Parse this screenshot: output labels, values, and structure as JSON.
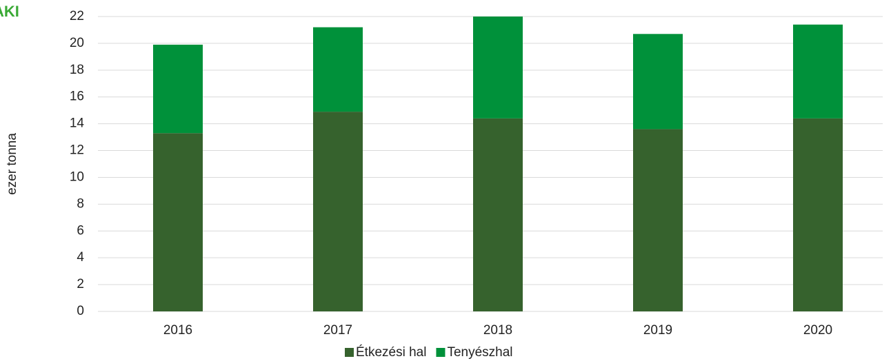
{
  "logo": "AKI",
  "chart_data": {
    "type": "stacked_bar",
    "y_label": "ezer tonna",
    "categories": [
      "2016",
      "2017",
      "2018",
      "2019",
      "2020"
    ],
    "series": [
      {
        "name": "Étkezési hal",
        "color": "#36622d",
        "values": [
          13.3,
          14.9,
          14.4,
          13.6,
          14.4
        ]
      },
      {
        "name": "Tenyészhal",
        "color": "#00913a",
        "values": [
          6.6,
          6.3,
          7.6,
          7.1,
          7.0
        ]
      }
    ],
    "ylim": [
      0,
      22
    ],
    "yticks": [
      0,
      2,
      4,
      6,
      8,
      10,
      12,
      14,
      16,
      18,
      20,
      22
    ],
    "grid": true,
    "legend": "bottom"
  }
}
